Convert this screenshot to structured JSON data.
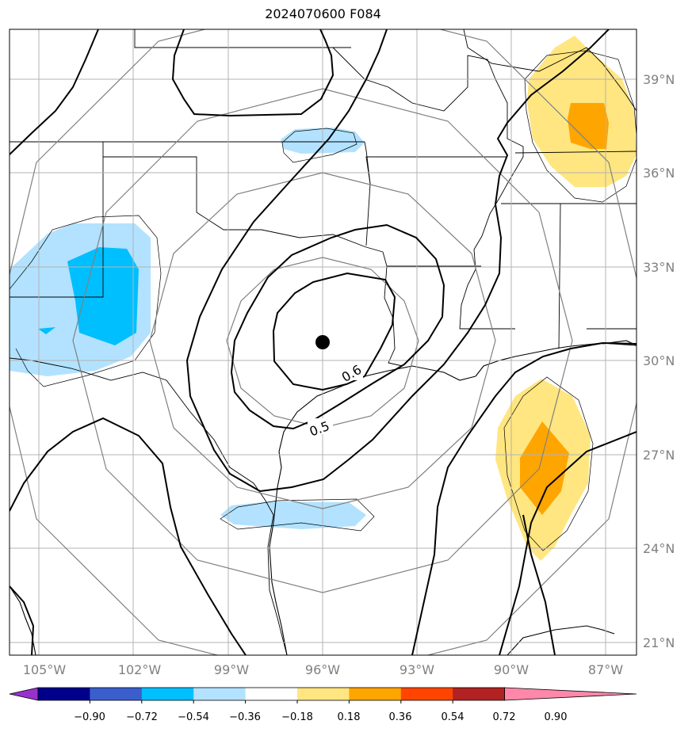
{
  "title": "2024070600 F084",
  "lon_labels": [
    "105°W",
    "102°W",
    "99°W",
    "96°W",
    "93°W",
    "90°W",
    "87°W"
  ],
  "lat_labels": [
    "39°N",
    "36°N",
    "33°N",
    "30°N",
    "27°N",
    "24°N",
    "21°N"
  ],
  "contour_labels": [
    "0.6",
    "0.5"
  ],
  "colorbar": {
    "ticks": [
      "−0.90",
      "−0.72",
      "−0.54",
      "−0.36",
      "−0.18",
      "0.18",
      "0.36",
      "0.54",
      "0.72",
      "0.90"
    ],
    "colors": [
      "#9932cc",
      "#00008b",
      "#3a5fcd",
      "#00bfff",
      "#b2e2ff",
      "#ffffff",
      "#ffe680",
      "#ffa500",
      "#ff4500",
      "#b22222",
      "#ff88aa"
    ]
  },
  "center_marker": "storm-center-dot",
  "colors": {
    "light_blue": "#b2e2ff",
    "blue": "#00bfff",
    "light_yellow": "#ffe680",
    "orange": "#ffa500",
    "grid": "#b3b3b3",
    "range_rings": "#808080",
    "axis_labels": "#808080"
  }
}
